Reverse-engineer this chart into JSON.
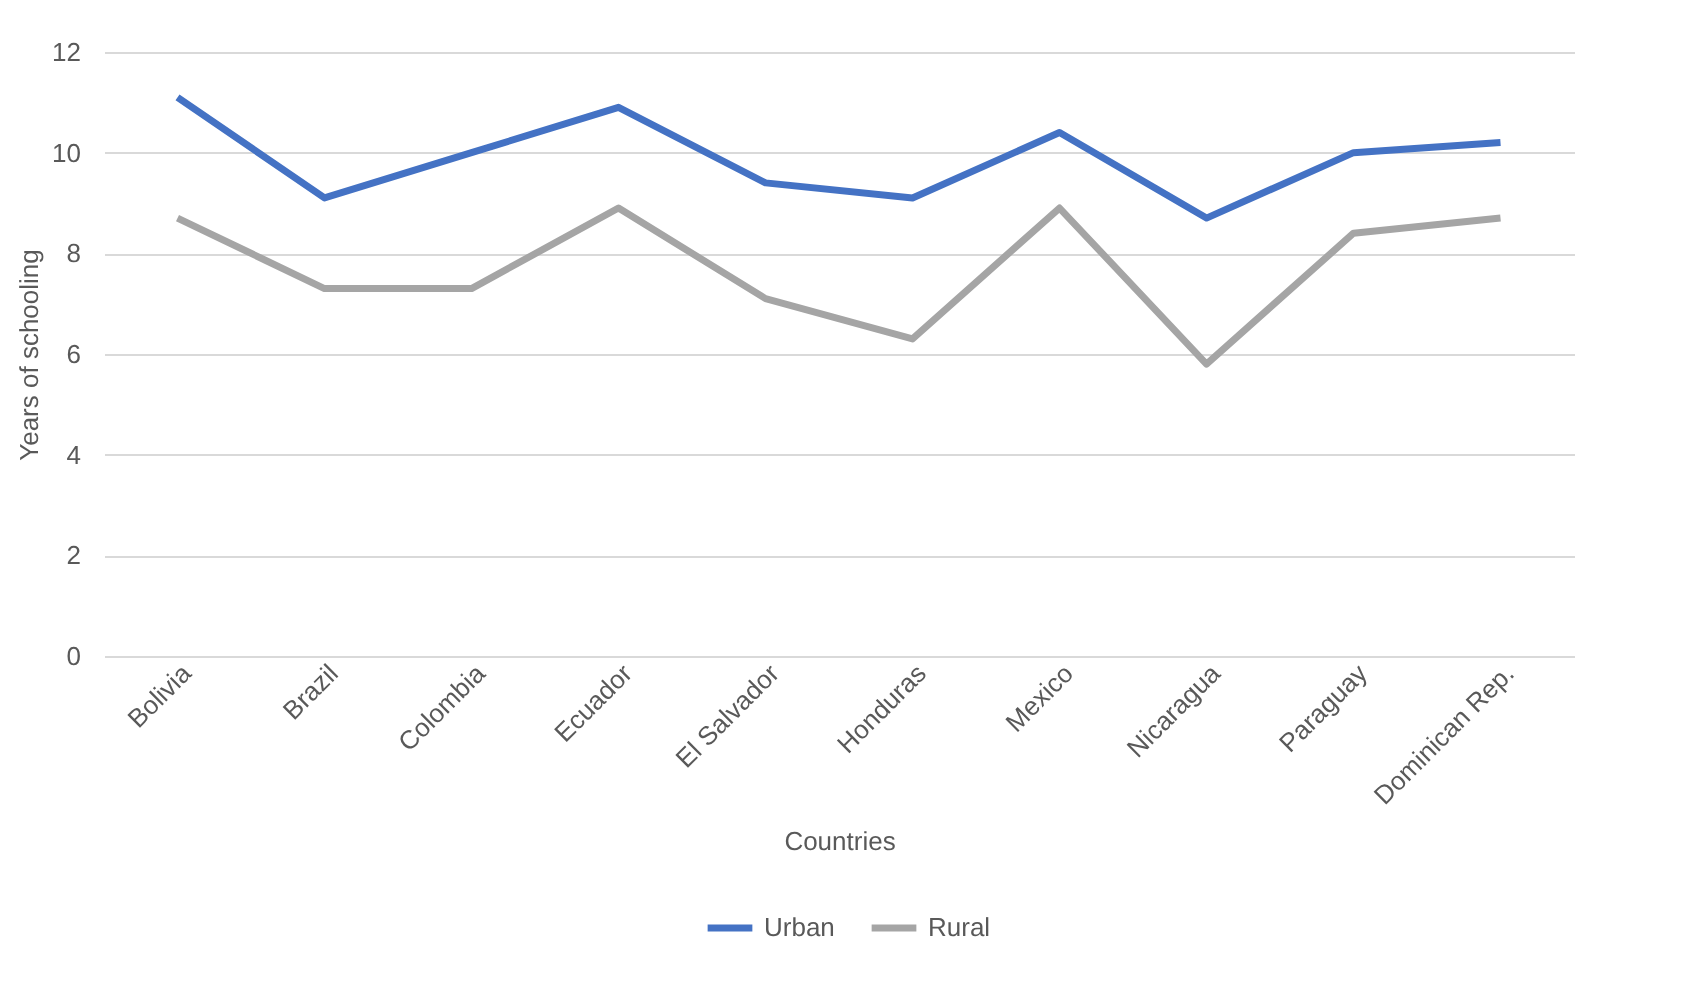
{
  "chart_data": {
    "type": "line",
    "xlabel": "Countries",
    "ylabel": "Years of schooling",
    "categories": [
      "Bolivia",
      "Brazil",
      "Colombia",
      "Ecuador",
      "El Salvador",
      "Honduras",
      "Mexico",
      "Nicaragua",
      "Paraguay",
      "Dominican Rep."
    ],
    "series": [
      {
        "name": "Urban",
        "color": "#4472c4",
        "values": [
          11.1,
          9.1,
          10.0,
          10.9,
          9.4,
          9.1,
          10.4,
          8.7,
          10.0,
          10.2
        ]
      },
      {
        "name": "Rural",
        "color": "#a5a5a5",
        "values": [
          8.7,
          7.3,
          7.3,
          8.9,
          7.1,
          6.3,
          8.9,
          5.8,
          8.4,
          8.7
        ]
      }
    ],
    "ylim": [
      0,
      12
    ],
    "yticks": [
      0,
      2,
      4,
      6,
      8,
      10,
      12
    ],
    "grid": "y",
    "legend": "bottom",
    "marker": "none",
    "line_style": "solid"
  }
}
